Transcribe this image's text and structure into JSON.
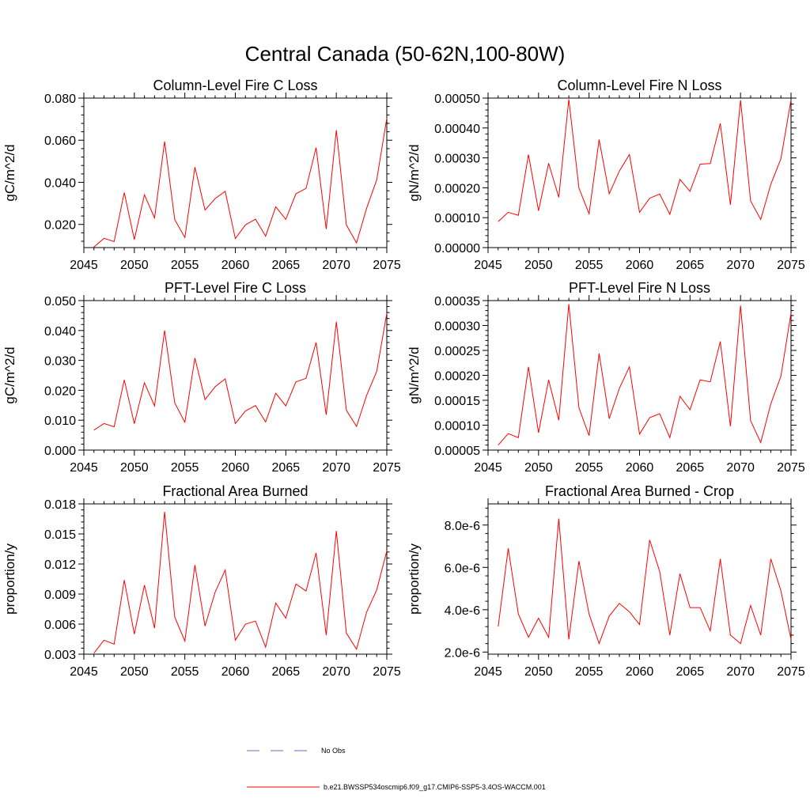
{
  "title": "Central Canada (50-62N,100-80W)",
  "chart_data": [
    {
      "type": "line",
      "title": "Column-Level Fire C Loss",
      "ylabel": "gC/m^2/d",
      "xlabel": "",
      "xlim": [
        2045,
        2075
      ],
      "ylim": [
        0.009,
        0.08
      ],
      "xticks": [
        2045,
        2050,
        2055,
        2060,
        2065,
        2070,
        2075
      ],
      "xtick_labels": [
        "2045",
        "2050",
        "2055",
        "2060",
        "2065",
        "2070",
        "2075"
      ],
      "yticks": [
        0.02,
        0.04,
        0.06,
        0.08
      ],
      "ytick_labels": [
        "0.020",
        "0.040",
        "0.060",
        "0.080"
      ],
      "x": [
        2046,
        2047,
        2048,
        2049,
        2050,
        2051,
        2052,
        2053,
        2054,
        2055,
        2056,
        2057,
        2058,
        2059,
        2060,
        2061,
        2062,
        2063,
        2064,
        2065,
        2066,
        2067,
        2068,
        2069,
        2070,
        2071,
        2072,
        2073,
        2074,
        2075
      ],
      "series": [
        {
          "name": "b.e21.BWSSP534oscmip6.f09_g17.CMIP6-SSP5-3.4OS-WACCM.001",
          "color": "#ff0000",
          "values": [
            0.0093,
            0.0134,
            0.0119,
            0.0351,
            0.0128,
            0.0341,
            0.0231,
            0.0594,
            0.0223,
            0.0138,
            0.0472,
            0.0268,
            0.0323,
            0.0357,
            0.0133,
            0.0198,
            0.0225,
            0.0144,
            0.0284,
            0.0224,
            0.0346,
            0.0371,
            0.0565,
            0.0178,
            0.0648,
            0.0198,
            0.0112,
            0.0277,
            0.0411,
            0.0705
          ]
        }
      ]
    },
    {
      "type": "line",
      "title": "Column-Level Fire N Loss",
      "ylabel": "gN/m^2/d",
      "xlabel": "",
      "xlim": [
        2045,
        2075
      ],
      "ylim": [
        0.0,
        0.0005
      ],
      "xticks": [
        2045,
        2050,
        2055,
        2060,
        2065,
        2070,
        2075
      ],
      "xtick_labels": [
        "2045",
        "2050",
        "2055",
        "2060",
        "2065",
        "2070",
        "2075"
      ],
      "yticks": [
        0.0,
        0.0001,
        0.0002,
        0.0003,
        0.0004,
        0.0005
      ],
      "ytick_labels": [
        "0.00000",
        "0.00010",
        "0.00020",
        "0.00030",
        "0.00040",
        "0.00050"
      ],
      "x": [
        2046,
        2047,
        2048,
        2049,
        2050,
        2051,
        2052,
        2053,
        2054,
        2055,
        2056,
        2057,
        2058,
        2059,
        2060,
        2061,
        2062,
        2063,
        2064,
        2065,
        2066,
        2067,
        2068,
        2069,
        2070,
        2071,
        2072,
        2073,
        2074,
        2075
      ],
      "series": [
        {
          "name": "b.e21.BWSSP534oscmip6.f09_g17.CMIP6-SSP5-3.4OS-WACCM.001",
          "color": "#ff0000",
          "values": [
            8.7e-05,
            0.000118,
            0.000108,
            0.000311,
            0.000123,
            0.000282,
            0.000168,
            0.000496,
            0.000199,
            0.000113,
            0.000361,
            0.00018,
            0.000256,
            0.000311,
            0.000118,
            0.000165,
            0.000179,
            0.000111,
            0.000228,
            0.000188,
            0.000279,
            0.000281,
            0.000415,
            0.000143,
            0.000493,
            0.000156,
            9.4e-05,
            0.000212,
            0.000297,
            0.000494
          ]
        }
      ]
    },
    {
      "type": "line",
      "title": "PFT-Level Fire C Loss",
      "ylabel": "gC/m^2/d",
      "xlabel": "",
      "xlim": [
        2045,
        2075
      ],
      "ylim": [
        0.0,
        0.05
      ],
      "xticks": [
        2045,
        2050,
        2055,
        2060,
        2065,
        2070,
        2075
      ],
      "xtick_labels": [
        "2045",
        "2050",
        "2055",
        "2060",
        "2065",
        "2070",
        "2075"
      ],
      "yticks": [
        0.0,
        0.01,
        0.02,
        0.03,
        0.04,
        0.05
      ],
      "ytick_labels": [
        "0.000",
        "0.010",
        "0.020",
        "0.030",
        "0.040",
        "0.050"
      ],
      "x": [
        2046,
        2047,
        2048,
        2049,
        2050,
        2051,
        2052,
        2053,
        2054,
        2055,
        2056,
        2057,
        2058,
        2059,
        2060,
        2061,
        2062,
        2063,
        2064,
        2065,
        2066,
        2067,
        2068,
        2069,
        2070,
        2071,
        2072,
        2073,
        2074,
        2075
      ],
      "series": [
        {
          "name": "b.e21.BWSSP534oscmip6.f09_g17.CMIP6-SSP5-3.4OS-WACCM.001",
          "color": "#ff0000",
          "values": [
            0.0067,
            0.0089,
            0.0078,
            0.0235,
            0.0088,
            0.0225,
            0.0148,
            0.04,
            0.0158,
            0.0093,
            0.0308,
            0.0169,
            0.0212,
            0.0238,
            0.0089,
            0.0131,
            0.0149,
            0.0094,
            0.019,
            0.0148,
            0.0228,
            0.024,
            0.036,
            0.0118,
            0.0429,
            0.0133,
            0.0079,
            0.0183,
            0.0263,
            0.0458
          ]
        }
      ]
    },
    {
      "type": "line",
      "title": "PFT-Level Fire N Loss",
      "ylabel": "gN/m^2/d",
      "xlabel": "",
      "xlim": [
        2045,
        2075
      ],
      "ylim": [
        5e-05,
        0.00035
      ],
      "xticks": [
        2045,
        2050,
        2055,
        2060,
        2065,
        2070,
        2075
      ],
      "xtick_labels": [
        "2045",
        "2050",
        "2055",
        "2060",
        "2065",
        "2070",
        "2075"
      ],
      "yticks": [
        5e-05,
        0.0001,
        0.00015,
        0.0002,
        0.00025,
        0.0003,
        0.00035
      ],
      "ytick_labels": [
        "0.00005",
        "0.00010",
        "0.00015",
        "0.00020",
        "0.00025",
        "0.00030",
        "0.00035"
      ],
      "x": [
        2046,
        2047,
        2048,
        2049,
        2050,
        2051,
        2052,
        2053,
        2054,
        2055,
        2056,
        2057,
        2058,
        2059,
        2060,
        2061,
        2062,
        2063,
        2064,
        2065,
        2066,
        2067,
        2068,
        2069,
        2070,
        2071,
        2072,
        2073,
        2074,
        2075
      ],
      "series": [
        {
          "name": "b.e21.BWSSP534oscmip6.f09_g17.CMIP6-SSP5-3.4OS-WACCM.001",
          "color": "#ff0000",
          "values": [
            6e-05,
            8.3e-05,
            7.5e-05,
            0.000217,
            8.5e-05,
            0.000191,
            0.00011,
            0.000343,
            0.000135,
            7.9e-05,
            0.000244,
            0.000113,
            0.000174,
            0.000217,
            8.2e-05,
            0.000115,
            0.000123,
            7.5e-05,
            0.000158,
            0.000131,
            0.000191,
            0.000187,
            0.000268,
            9.8e-05,
            0.00034,
            0.000109,
            6.5e-05,
            0.000143,
            0.000198,
            0.000325
          ]
        }
      ]
    },
    {
      "type": "line",
      "title": "Fractional Area Burned",
      "ylabel": "proportion/y",
      "xlabel": "",
      "xlim": [
        2045,
        2075
      ],
      "ylim": [
        0.003,
        0.018
      ],
      "xticks": [
        2045,
        2050,
        2055,
        2060,
        2065,
        2070,
        2075
      ],
      "xtick_labels": [
        "2045",
        "2050",
        "2055",
        "2060",
        "2065",
        "2070",
        "2075"
      ],
      "yticks": [
        0.003,
        0.006,
        0.009,
        0.012,
        0.015,
        0.018
      ],
      "ytick_labels": [
        "0.003",
        "0.006",
        "0.009",
        "0.012",
        "0.015",
        "0.018"
      ],
      "x": [
        2046,
        2047,
        2048,
        2049,
        2050,
        2051,
        2052,
        2053,
        2054,
        2055,
        2056,
        2057,
        2058,
        2059,
        2060,
        2061,
        2062,
        2063,
        2064,
        2065,
        2066,
        2067,
        2068,
        2069,
        2070,
        2071,
        2072,
        2073,
        2074,
        2075
      ],
      "series": [
        {
          "name": "b.e21.BWSSP534oscmip6.f09_g17.CMIP6-SSP5-3.4OS-WACCM.001",
          "color": "#ff0000",
          "values": [
            0.0031,
            0.0044,
            0.004,
            0.0104,
            0.005,
            0.0099,
            0.0056,
            0.0172,
            0.0067,
            0.0043,
            0.0119,
            0.0058,
            0.0092,
            0.0114,
            0.0044,
            0.006,
            0.0063,
            0.0037,
            0.0081,
            0.0066,
            0.01,
            0.0093,
            0.0131,
            0.0049,
            0.0153,
            0.0051,
            0.0035,
            0.0072,
            0.0094,
            0.0133
          ]
        }
      ]
    },
    {
      "type": "line",
      "title": "Fractional Area Burned - Crop",
      "ylabel": "proportion/y",
      "xlabel": "",
      "xlim": [
        2045,
        2075
      ],
      "ylim": [
        1.9e-06,
        9e-06
      ],
      "xticks": [
        2045,
        2050,
        2055,
        2060,
        2065,
        2070,
        2075
      ],
      "xtick_labels": [
        "2045",
        "2050",
        "2055",
        "2060",
        "2065",
        "2070",
        "2075"
      ],
      "yticks": [
        2e-06,
        4e-06,
        6e-06,
        8e-06
      ],
      "ytick_labels": [
        "2.0e-6",
        "4.0e-6",
        "6.0e-6",
        "8.0e-6"
      ],
      "x": [
        2046,
        2047,
        2048,
        2049,
        2050,
        2051,
        2052,
        2053,
        2054,
        2055,
        2056,
        2057,
        2058,
        2059,
        2060,
        2061,
        2062,
        2063,
        2064,
        2065,
        2066,
        2067,
        2068,
        2069,
        2070,
        2071,
        2072,
        2073,
        2074,
        2075
      ],
      "series": [
        {
          "name": "b.e21.BWSSP534oscmip6.f09_g17.CMIP6-SSP5-3.4OS-WACCM.001",
          "color": "#ff0000",
          "values": [
            3.2e-06,
            6.9e-06,
            3.8e-06,
            2.7e-06,
            3.6e-06,
            2.7e-06,
            8.3e-06,
            2.6e-06,
            6.3e-06,
            3.8e-06,
            2.4e-06,
            3.7e-06,
            4.3e-06,
            3.9e-06,
            3.3e-06,
            7.3e-06,
            5.8e-06,
            2.8e-06,
            5.7e-06,
            4.1e-06,
            4.1e-06,
            3e-06,
            6.4e-06,
            2.8e-06,
            2.4e-06,
            4.2e-06,
            2.8e-06,
            6.4e-06,
            4.9e-06,
            2.6e-06
          ]
        }
      ]
    }
  ],
  "legend": {
    "items": [
      {
        "label": "No Obs",
        "color": "#6b6bbf",
        "style": "dashed"
      },
      {
        "label": "b.e21.BWSSP534oscmip6.f09_g17.CMIP6-SSP5-3.4OS-WACCM.001",
        "color": "#ff0000",
        "style": "solid"
      }
    ]
  }
}
